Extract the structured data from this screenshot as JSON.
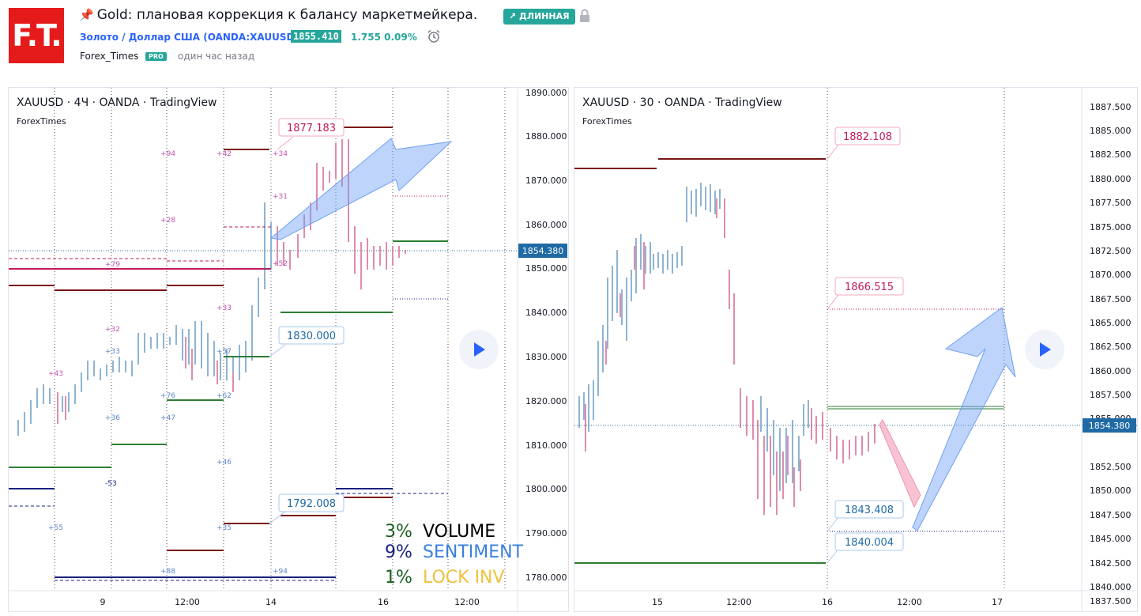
{
  "header": {
    "logo_text": "F.T.",
    "title": "Gold: плановая коррекция к балансу маркетмейкера.",
    "long_badge": "↗ ДЛИННАЯ",
    "symbol": "Золото / Доллар США (OANDA:XAUUSD)",
    "price": "1855.410",
    "change": "1.755  0.09%",
    "author": "Forex_Times",
    "pro": "PRO",
    "time": "один час назад"
  },
  "left_chart": {
    "title": "XAUUSD · 4Ч · OANDA · TradingView",
    "author": "ForexTimes",
    "price_labels": [
      "1890.000",
      "1880.000",
      "1870.000",
      "1860.000",
      "1850.000",
      "1840.000",
      "1830.000",
      "1820.000",
      "1810.000",
      "1800.000",
      "1790.000",
      "1780.000"
    ],
    "current_price": "1854.380",
    "x_labels": [
      "9",
      "12:00",
      "14",
      "16",
      "12:00"
    ],
    "callouts": [
      "1877.183",
      "1830.000",
      "1792.008"
    ],
    "stats": [
      {
        "pct": "3%",
        "label": "VOLUME"
      },
      {
        "pct": "9%",
        "label": "SENTIMENT"
      },
      {
        "pct": "1%",
        "label": "LOCK INV"
      }
    ],
    "small_numbers": [
      "+94",
      "+42",
      "+34",
      "+31",
      "+28",
      "+79",
      "+52",
      "+33",
      "+32",
      "+33",
      "+57",
      "+43",
      "+76",
      "+62",
      "+36",
      "+47",
      "+46",
      "-53",
      "+35",
      "+55",
      "+88",
      "+94"
    ]
  },
  "right_chart": {
    "title": "XAUUSD · 30 · OANDA · TradingView",
    "author": "ForexTimes",
    "price_labels": [
      "1887.500",
      "1885.000",
      "1882.500",
      "1880.000",
      "1877.500",
      "1875.000",
      "1872.500",
      "1870.000",
      "1867.500",
      "1865.000",
      "1862.500",
      "1860.000",
      "1857.500",
      "1855.000",
      "1852.500",
      "1850.000",
      "1847.500",
      "1845.000",
      "1842.500",
      "1840.000",
      "1837.500"
    ],
    "current_price": "1854.380",
    "x_labels": [
      "15",
      "12:00",
      "16",
      "12:00",
      "17"
    ],
    "callouts": [
      "1882.108",
      "1866.515",
      "1843.408",
      "1840.004"
    ]
  },
  "colors": {
    "brand": "#e51b1b",
    "green": "#26a69a",
    "blue": "#2962ff",
    "pink": "#d6336c"
  }
}
